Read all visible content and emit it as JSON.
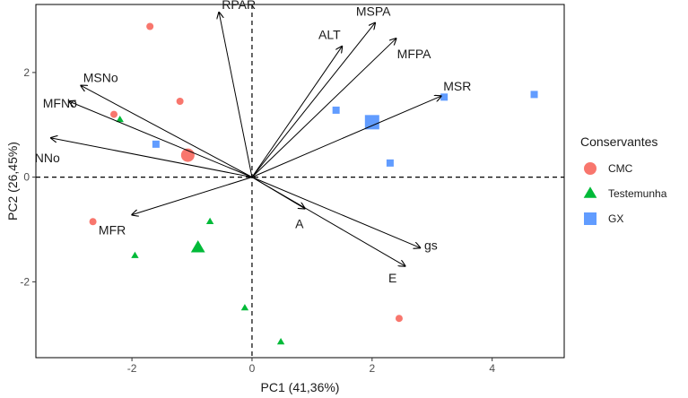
{
  "chart_data": {
    "type": "scatter",
    "subtype": "pca-biplot",
    "title": "",
    "xlabel": "PC1 (41,36%)",
    "ylabel": "PC2 (26,45%)",
    "xlim": [
      -3.6,
      5.2
    ],
    "ylim": [
      -3.45,
      3.3
    ],
    "xticks": [
      -2,
      0,
      2,
      4
    ],
    "yticks": [
      -2,
      0,
      2
    ],
    "grid": false,
    "reference_lines": {
      "x": 0,
      "y": 0,
      "style": "dashed"
    },
    "legend": {
      "title": "Conservantes",
      "position": "right",
      "entries": [
        {
          "label": "CMC",
          "shape": "circle",
          "color": "#F8766D"
        },
        {
          "label": "Testemunha",
          "shape": "triangle",
          "color": "#00BA38"
        },
        {
          "label": "GX",
          "shape": "square",
          "color": "#619CFF"
        }
      ]
    },
    "series": [
      {
        "name": "CMC",
        "shape": "circle",
        "color": "#F8766D",
        "points": [
          [
            -1.7,
            2.88
          ],
          [
            -1.2,
            1.45
          ],
          [
            -2.3,
            1.2
          ],
          [
            -2.65,
            -0.85
          ],
          [
            2.45,
            -2.7
          ]
        ],
        "centroid": [
          -1.07,
          0.42
        ]
      },
      {
        "name": "Testemunha",
        "shape": "triangle",
        "color": "#00BA38",
        "points": [
          [
            -2.2,
            1.1
          ],
          [
            -0.7,
            -0.85
          ],
          [
            -1.95,
            -1.5
          ],
          [
            -0.12,
            -2.5
          ],
          [
            0.48,
            -3.15
          ]
        ],
        "centroid": [
          -0.9,
          -1.35
        ]
      },
      {
        "name": "GX",
        "shape": "square",
        "color": "#619CFF",
        "points": [
          [
            -1.6,
            0.63
          ],
          [
            1.4,
            1.28
          ],
          [
            3.2,
            1.53
          ],
          [
            4.7,
            1.58
          ],
          [
            2.3,
            0.27
          ]
        ],
        "centroid": [
          2.0,
          1.05
        ]
      }
    ],
    "loadings": [
      {
        "name": "RPAR",
        "x": -0.55,
        "y": 3.15
      },
      {
        "name": "MSPA",
        "x": 2.05,
        "y": 2.95
      },
      {
        "name": "ALT",
        "x": 1.5,
        "y": 2.5
      },
      {
        "name": "MFPA",
        "x": 2.4,
        "y": 2.65
      },
      {
        "name": "MSR",
        "x": 3.15,
        "y": 1.55
      },
      {
        "name": "MSNo",
        "x": -2.85,
        "y": 1.75
      },
      {
        "name": "MFNo",
        "x": -3.05,
        "y": 1.45
      },
      {
        "name": "NNo",
        "x": -3.35,
        "y": 0.75
      },
      {
        "name": "MFR",
        "x": -2.0,
        "y": -0.72
      },
      {
        "name": "A",
        "x": 0.88,
        "y": -0.6
      },
      {
        "name": "gs",
        "x": 2.8,
        "y": -1.35
      },
      {
        "name": "E",
        "x": 2.55,
        "y": -1.7
      }
    ]
  }
}
